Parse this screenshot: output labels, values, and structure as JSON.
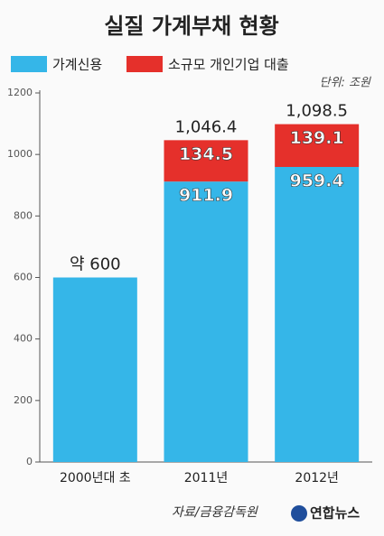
{
  "chart_data": {
    "type": "stacked-bar",
    "title": "실질 가계부채 현황",
    "unit": "단위: 조원",
    "categories": [
      "2000년대 초",
      "2011년",
      "2012년"
    ],
    "series": [
      {
        "name": "가계신용",
        "color": "#35b6e8",
        "values": [
          600,
          911.9,
          959.4
        ],
        "value_labels": [
          "약 600",
          "911.9",
          "959.4"
        ]
      },
      {
        "name": "소규모 개인기업 대출",
        "color": "#e5302b",
        "values": [
          null,
          134.5,
          139.1
        ]
      }
    ],
    "totals": [
      null,
      1046.4,
      1098.5
    ],
    "total_labels": [
      null,
      "1,046.4",
      "1,098.5"
    ],
    "ylim": [
      0,
      1200
    ],
    "yticks": [
      0,
      200,
      400,
      600,
      800,
      1000,
      1200
    ],
    "source": "자료/금융감독원",
    "credit": "연합뉴스"
  }
}
